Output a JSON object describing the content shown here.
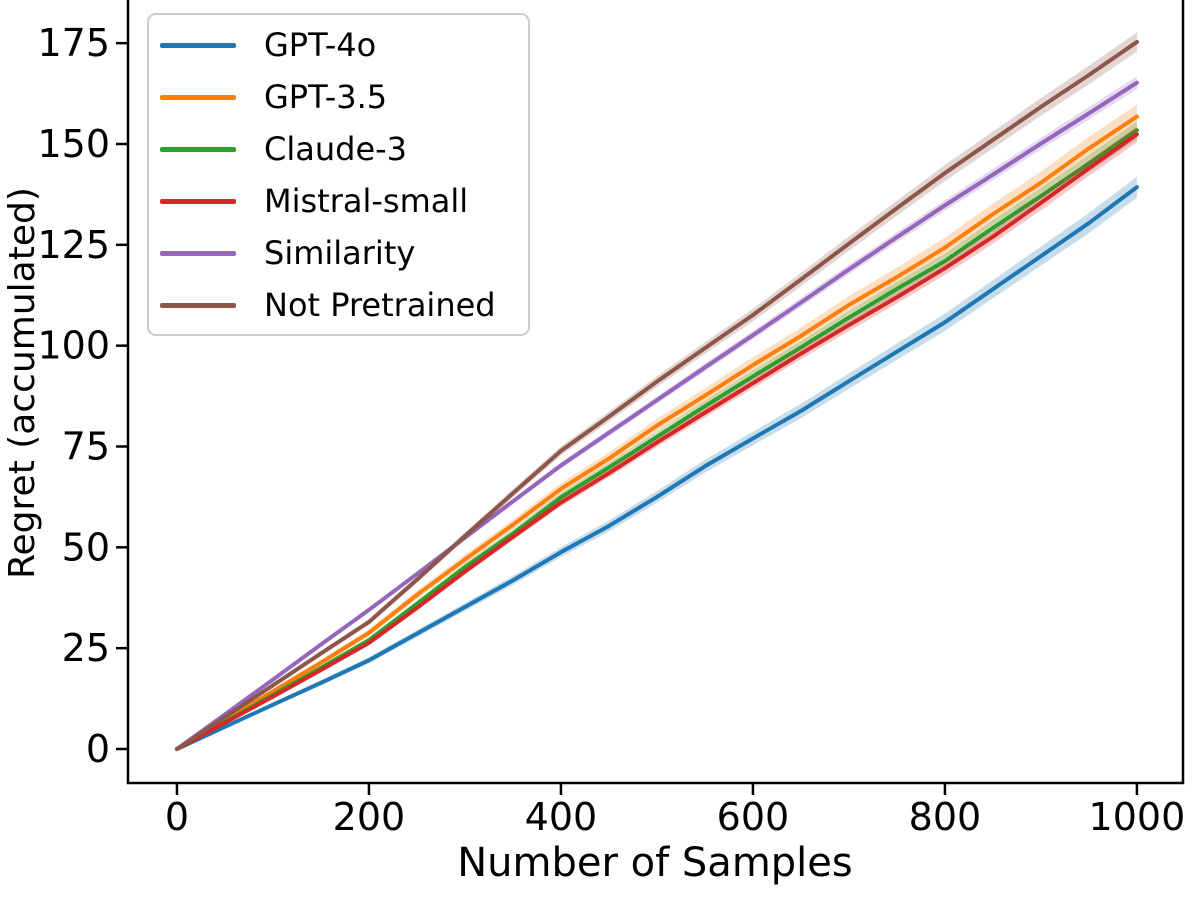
{
  "figure": {
    "background": "#ffffff",
    "xlabel": "Number of Samples",
    "ylabel": "Regret (accumulated)",
    "x_ticks": [
      "0",
      "200",
      "400",
      "600",
      "800",
      "1000"
    ],
    "y_ticks": [
      "0",
      "25",
      "50",
      "75",
      "100",
      "125",
      "150",
      "175"
    ],
    "axis_color": "#000000"
  },
  "legend": {
    "items": [
      {
        "label": "GPT-4o",
        "color": "#1f77b4"
      },
      {
        "label": "GPT-3.5",
        "color": "#ff7f0e"
      },
      {
        "label": "Claude-3",
        "color": "#2ca02c"
      },
      {
        "label": "Mistral-small",
        "color": "#d62728"
      },
      {
        "label": "Similarity",
        "color": "#9467bd"
      },
      {
        "label": "Not Pretrained",
        "color": "#8c564b"
      }
    ]
  },
  "chart_data": {
    "type": "line",
    "title": "",
    "xlabel": "Number of Samples",
    "ylabel": "Regret (accumulated)",
    "x_tick_values": [
      0,
      200,
      400,
      600,
      800,
      1000
    ],
    "y_tick_values": [
      0,
      25,
      50,
      75,
      100,
      125,
      150,
      175
    ],
    "xlim": [
      -51,
      1048
    ],
    "ylim_visible": [
      -8.43,
      185.7
    ],
    "grid": false,
    "legend_position": "upper left",
    "band_opacity": 0.25,
    "x": [
      0,
      50,
      100,
      150,
      200,
      250,
      300,
      350,
      400,
      450,
      500,
      550,
      600,
      650,
      700,
      750,
      800,
      850,
      900,
      950,
      1000
    ],
    "series": [
      {
        "name": "GPT-4o",
        "color": "#1f77b4",
        "band_halfwidth": 2.6,
        "values": [
          0,
          5.5,
          11,
          16.4,
          22,
          28.6,
          35.2,
          41.8,
          48.8,
          55.3,
          62.5,
          70.1,
          77,
          83.8,
          91.2,
          98.5,
          105.8,
          114,
          122.2,
          130.4,
          139.3
        ]
      },
      {
        "name": "GPT-3.5",
        "color": "#ff7f0e",
        "band_halfwidth": 3.0,
        "values": [
          0,
          7.2,
          14.3,
          21.4,
          28.8,
          38.2,
          47,
          55.6,
          64.5,
          72,
          80.2,
          87.6,
          95.2,
          102.4,
          110.1,
          117,
          124.3,
          132.6,
          140.4,
          148.9,
          156.8
        ]
      },
      {
        "name": "Claude-3",
        "color": "#2ca02c",
        "band_halfwidth": 2.2,
        "values": [
          0,
          6.7,
          13.4,
          20.1,
          27,
          36,
          45.1,
          53.4,
          62.4,
          69.8,
          77.4,
          85,
          92.4,
          99.6,
          107,
          114.1,
          121,
          129.2,
          137.1,
          145.2,
          153.4
        ]
      },
      {
        "name": "Mistral-small",
        "color": "#d62728",
        "band_halfwidth": 2.0,
        "values": [
          0,
          6.5,
          13,
          19.6,
          26.3,
          35,
          44,
          52.6,
          61.1,
          68.4,
          76,
          83.4,
          90.7,
          98,
          105.1,
          112,
          119.2,
          127,
          135.4,
          144,
          152.4
        ]
      },
      {
        "name": "Similarity",
        "color": "#9467bd",
        "band_halfwidth": 1.6,
        "values": [
          0,
          8.6,
          17.2,
          25.9,
          34.5,
          43.4,
          52.4,
          61.4,
          70.3,
          78.4,
          86.5,
          94.6,
          102.6,
          110.7,
          118.9,
          126.9,
          134.8,
          142.4,
          150.1,
          157.6,
          165.2
        ]
      },
      {
        "name": "Not Pretrained",
        "color": "#8c564b",
        "band_halfwidth": 2.4,
        "values": [
          0,
          7.9,
          15.8,
          23.7,
          31.5,
          42,
          52.8,
          63.4,
          73.9,
          82.4,
          91.1,
          99.4,
          107.6,
          116.4,
          125.3,
          134.1,
          142.8,
          151,
          159.2,
          167.1,
          175.3
        ]
      }
    ]
  }
}
